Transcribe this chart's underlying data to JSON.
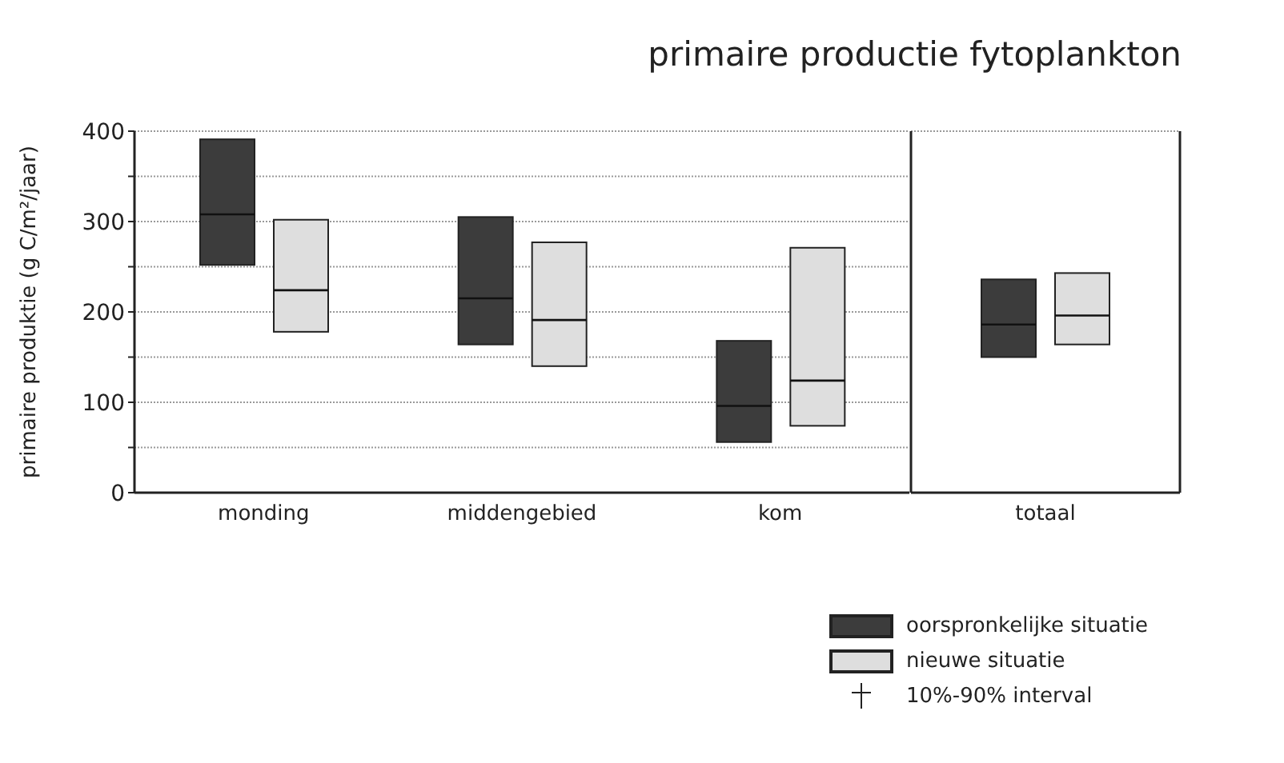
{
  "chart_data": [
    {
      "type": "box",
      "ylabel": "primaire produktie (g C/m²/jaar)",
      "categories": [
        "monding",
        "middengebied",
        "kom"
      ],
      "series": [
        {
          "color": "#3c3c3c",
          "boxes": [
            {
              "low": 252,
              "q1": 252,
              "median": 308,
              "q3": 391,
              "high": 391
            },
            {
              "low": 164,
              "q1": 164,
              "median": 215,
              "q3": 305,
              "high": 305
            },
            {
              "low": 56,
              "q1": 56,
              "median": 96,
              "q3": 168,
              "high": 168
            }
          ]
        },
        {
          "color": "#dedede",
          "boxes": [
            {
              "low": 178,
              "q1": 178,
              "median": 224,
              "q3": 302,
              "high": 302
            },
            {
              "low": 140,
              "q1": 140,
              "median": 191,
              "q3": 277,
              "high": 277
            },
            {
              "low": 74,
              "q1": 74,
              "median": 124,
              "q3": 271,
              "high": 271
            }
          ]
        }
      ],
      "ylim": [
        0,
        400
      ],
      "yticks": [
        0,
        {
          "value": 50,
          "label": null
        },
        100,
        {
          "value": 150,
          "label": null
        },
        200,
        {
          "value": 250,
          "label": null
        },
        300,
        {
          "value": 350,
          "label": null
        },
        400
      ],
      "grid": "y"
    },
    {
      "type": "box",
      "title": "primaire productie fytoplankton",
      "categories": [
        "totaal"
      ],
      "series": [
        {
          "name": "oorspronkelijke situatie",
          "color": "#3c3c3c",
          "boxes": [
            {
              "low": 150,
              "q1": 150,
              "median": 186,
              "q3": 236,
              "high": 236
            }
          ]
        },
        {
          "name": "nieuwe situatie",
          "color": "#dedede",
          "boxes": [
            {
              "low": 164,
              "q1": 164,
              "median": 196,
              "q3": 243,
              "high": 243
            }
          ]
        }
      ],
      "ylim": [
        0,
        400
      ],
      "yticks": [
        0,
        100,
        200,
        300,
        400
      ],
      "tick_labels": "x",
      "grid": "y",
      "legend": "bottom left",
      "annotations": [
        "10%-90% interval"
      ]
    }
  ]
}
